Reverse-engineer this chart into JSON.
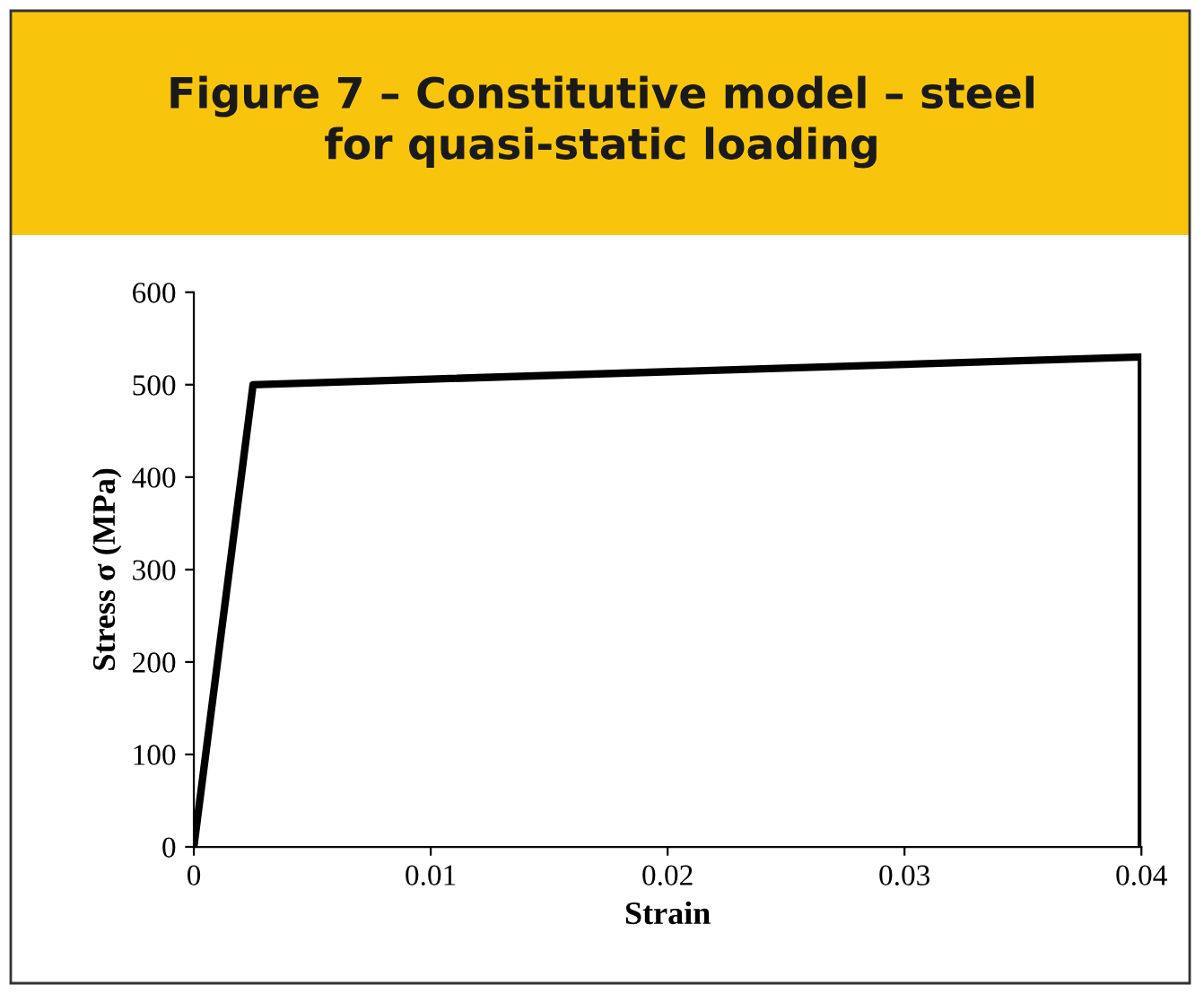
{
  "chart_data": {
    "type": "line",
    "title": "Figure 7 – Constitutive model – steel\nfor quasi-static loading",
    "xlabel": "Strain",
    "ylabel": "Stress σ (MPa)",
    "x": [
      0,
      0.0025,
      0.04,
      0.04
    ],
    "series": [
      {
        "color": "#000000",
        "values": [
          0,
          500,
          530,
          0
        ]
      }
    ],
    "xlim": [
      0,
      0.04
    ],
    "xticks": [
      0,
      0.01,
      0.02,
      0.03,
      0.04
    ],
    "ylim": [
      0,
      600
    ],
    "yticks": [
      0,
      100,
      200,
      300,
      400,
      500,
      600
    ],
    "grid": false,
    "legend": false,
    "marker": "none",
    "line_style": "solid"
  }
}
